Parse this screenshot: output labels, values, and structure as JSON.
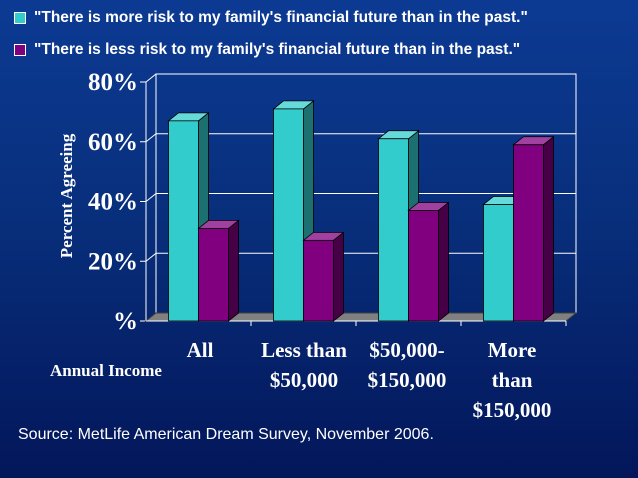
{
  "colors": {
    "background": "#0a3487",
    "series1": "#33cccc",
    "series2": "#800080",
    "gridline": "#ffffff",
    "floor": "#808080"
  },
  "legend": [
    {
      "label": "\"There is more risk to my family's financial future than in the past.\"",
      "color": "#33cccc"
    },
    {
      "label": "\"There is less risk to my family's financial future than in the past.\"",
      "color": "#800080"
    }
  ],
  "chart_data": {
    "type": "bar",
    "style": "3d-clustered-column",
    "ylabel": "Percent Agreeing",
    "xlabel": "Annual Income",
    "ylim": [
      0,
      80
    ],
    "yticks": [
      0,
      20,
      40,
      60,
      80
    ],
    "ytick_labels": [
      "%",
      "20%",
      "40%",
      "60%",
      "80%"
    ],
    "grid": true,
    "legend_position": "top",
    "categories": [
      [
        "All"
      ],
      [
        "Less than",
        "$50,000"
      ],
      [
        "$50,000-",
        "$150,000"
      ],
      [
        "More",
        "than",
        "$150,000"
      ]
    ],
    "series": [
      {
        "name": "\"There is more risk to my family's financial future than in the past.\"",
        "values": [
          67,
          71,
          61,
          39
        ]
      },
      {
        "name": "\"There is less risk to my family's financial future than in the past.\"",
        "values": [
          31,
          27,
          37,
          59
        ]
      }
    ]
  },
  "source": "Source: MetLife American Dream Survey, November 2006."
}
